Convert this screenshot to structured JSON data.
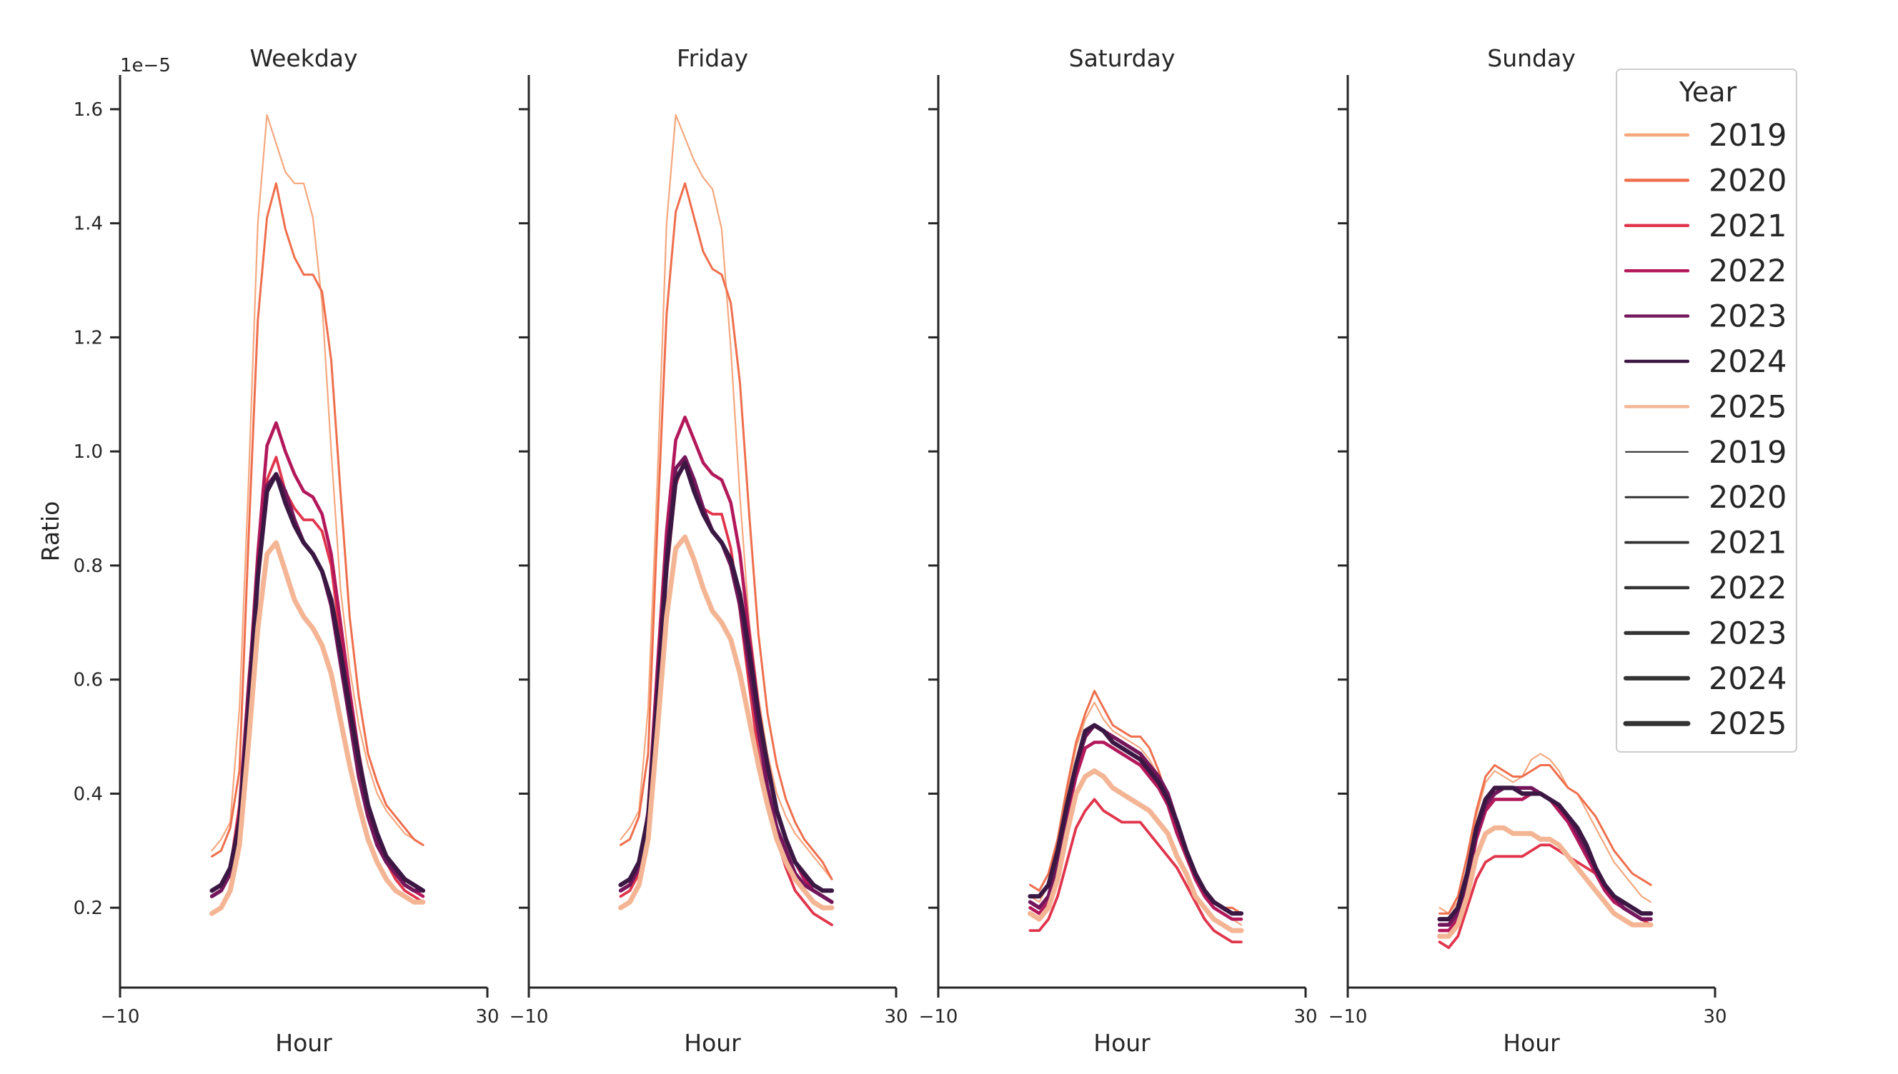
{
  "chart_data": {
    "type": "line",
    "ylabel": "Ratio",
    "xlabel": "Hour",
    "y_offset_label": "1e−5",
    "y_scale": 1e-05,
    "xlim": [
      -10,
      30
    ],
    "x_ticks": [
      -10,
      30
    ],
    "x_tick_labels": [
      "−10",
      "30"
    ],
    "ylim": [
      0.06,
      1.66
    ],
    "y_ticks": [
      0.2,
      0.4,
      0.6,
      0.8,
      1.0,
      1.2,
      1.4,
      1.6
    ],
    "y_tick_labels": [
      "0.2",
      "0.4",
      "0.6",
      "0.8",
      "1.0",
      "1.2",
      "1.4",
      "1.6"
    ],
    "x_hours": [
      0,
      1,
      2,
      3,
      4,
      5,
      6,
      7,
      8,
      9,
      10,
      11,
      12,
      13,
      14,
      15,
      16,
      17,
      18,
      19,
      20,
      21,
      22,
      23
    ],
    "grid": false,
    "legend": {
      "title": "Year",
      "placement": "right",
      "hue_entries": [
        {
          "label": "2019",
          "color": "#F5A77E"
        },
        {
          "label": "2020",
          "color": "#EF6E4C"
        },
        {
          "label": "2021",
          "color": "#E0354C"
        },
        {
          "label": "2022",
          "color": "#B3185B"
        },
        {
          "label": "2023",
          "color": "#74165B"
        },
        {
          "label": "2024",
          "color": "#3B1743"
        },
        {
          "label": "2025",
          "color": "#F4B595"
        }
      ],
      "size_entries": [
        {
          "label": "2019",
          "color": "#333333"
        },
        {
          "label": "2020",
          "color": "#333333"
        },
        {
          "label": "2021",
          "color": "#333333"
        },
        {
          "label": "2022",
          "color": "#333333"
        },
        {
          "label": "2023",
          "color": "#333333"
        },
        {
          "label": "2024",
          "color": "#333333"
        },
        {
          "label": "2025",
          "color": "#333333"
        }
      ]
    },
    "panels": [
      {
        "title": "Weekday",
        "series": [
          {
            "name": "2019",
            "color": "#F5A77E",
            "values": [
              0.3,
              0.32,
              0.35,
              0.55,
              0.95,
              1.4,
              1.59,
              1.54,
              1.49,
              1.47,
              1.47,
              1.41,
              1.26,
              1.0,
              0.76,
              0.62,
              0.52,
              0.45,
              0.4,
              0.37,
              0.35,
              0.33,
              0.32,
              0.31
            ]
          },
          {
            "name": "2020",
            "color": "#EF6E4C",
            "values": [
              0.29,
              0.3,
              0.34,
              0.44,
              0.85,
              1.23,
              1.41,
              1.47,
              1.39,
              1.34,
              1.31,
              1.31,
              1.28,
              1.16,
              0.93,
              0.71,
              0.57,
              0.47,
              0.42,
              0.38,
              0.36,
              0.34,
              0.32,
              0.31
            ]
          },
          {
            "name": "2021",
            "color": "#E0354C",
            "values": [
              0.22,
              0.23,
              0.27,
              0.38,
              0.6,
              0.78,
              0.95,
              0.99,
              0.93,
              0.9,
              0.88,
              0.88,
              0.86,
              0.8,
              0.67,
              0.54,
              0.44,
              0.37,
              0.32,
              0.28,
              0.25,
              0.23,
              0.22,
              0.21
            ]
          },
          {
            "name": "2022",
            "color": "#B3185B",
            "values": [
              0.22,
              0.23,
              0.26,
              0.36,
              0.58,
              0.82,
              1.01,
              1.05,
              1.0,
              0.96,
              0.93,
              0.92,
              0.89,
              0.82,
              0.7,
              0.58,
              0.47,
              0.38,
              0.33,
              0.29,
              0.26,
              0.24,
              0.23,
              0.22
            ]
          },
          {
            "name": "2023",
            "color": "#74165B",
            "values": [
              0.22,
              0.23,
              0.26,
              0.36,
              0.58,
              0.78,
              0.94,
              0.96,
              0.93,
              0.88,
              0.84,
              0.82,
              0.79,
              0.73,
              0.63,
              0.53,
              0.43,
              0.36,
              0.31,
              0.28,
              0.26,
              0.24,
              0.23,
              0.23
            ]
          },
          {
            "name": "2024",
            "color": "#3B1743",
            "values": [
              0.23,
              0.24,
              0.27,
              0.35,
              0.54,
              0.78,
              0.93,
              0.96,
              0.91,
              0.87,
              0.84,
              0.82,
              0.79,
              0.74,
              0.65,
              0.55,
              0.46,
              0.38,
              0.33,
              0.29,
              0.27,
              0.25,
              0.24,
              0.23
            ]
          },
          {
            "name": "2025",
            "color": "#F4B595",
            "values": [
              0.19,
              0.2,
              0.23,
              0.31,
              0.49,
              0.69,
              0.82,
              0.84,
              0.79,
              0.74,
              0.71,
              0.69,
              0.66,
              0.61,
              0.53,
              0.45,
              0.38,
              0.32,
              0.28,
              0.25,
              0.23,
              0.22,
              0.21,
              0.21
            ]
          }
        ]
      },
      {
        "title": "Friday",
        "series": [
          {
            "name": "2019",
            "color": "#F5A77E",
            "values": [
              0.32,
              0.34,
              0.37,
              0.55,
              0.95,
              1.4,
              1.59,
              1.55,
              1.51,
              1.48,
              1.46,
              1.39,
              1.18,
              0.92,
              0.7,
              0.57,
              0.47,
              0.4,
              0.36,
              0.33,
              0.31,
              0.29,
              0.27,
              0.25
            ]
          },
          {
            "name": "2020",
            "color": "#EF6E4C",
            "values": [
              0.31,
              0.32,
              0.36,
              0.47,
              0.87,
              1.24,
              1.42,
              1.47,
              1.41,
              1.35,
              1.32,
              1.31,
              1.26,
              1.12,
              0.89,
              0.68,
              0.54,
              0.45,
              0.39,
              0.35,
              0.32,
              0.3,
              0.28,
              0.25
            ]
          },
          {
            "name": "2021",
            "color": "#E0354C",
            "values": [
              0.22,
              0.23,
              0.26,
              0.37,
              0.6,
              0.78,
              0.94,
              0.99,
              0.94,
              0.9,
              0.89,
              0.89,
              0.83,
              0.72,
              0.59,
              0.47,
              0.38,
              0.32,
              0.27,
              0.23,
              0.21,
              0.19,
              0.18,
              0.17
            ]
          },
          {
            "name": "2022",
            "color": "#B3185B",
            "values": [
              0.23,
              0.24,
              0.27,
              0.37,
              0.62,
              0.86,
              1.02,
              1.06,
              1.02,
              0.98,
              0.96,
              0.95,
              0.91,
              0.82,
              0.68,
              0.55,
              0.45,
              0.37,
              0.32,
              0.28,
              0.25,
              0.23,
              0.22,
              0.21
            ]
          },
          {
            "name": "2023",
            "color": "#74165B",
            "values": [
              0.23,
              0.24,
              0.27,
              0.36,
              0.59,
              0.82,
              0.97,
              0.99,
              0.95,
              0.9,
              0.86,
              0.84,
              0.8,
              0.73,
              0.62,
              0.51,
              0.41,
              0.34,
              0.3,
              0.26,
              0.24,
              0.23,
              0.22,
              0.21
            ]
          },
          {
            "name": "2024",
            "color": "#3B1743",
            "values": [
              0.24,
              0.25,
              0.28,
              0.36,
              0.56,
              0.8,
              0.95,
              0.98,
              0.93,
              0.89,
              0.86,
              0.84,
              0.81,
              0.75,
              0.65,
              0.54,
              0.45,
              0.37,
              0.32,
              0.28,
              0.26,
              0.24,
              0.23,
              0.23
            ]
          },
          {
            "name": "2025",
            "color": "#F4B595",
            "values": [
              0.2,
              0.21,
              0.24,
              0.32,
              0.51,
              0.71,
              0.83,
              0.85,
              0.81,
              0.76,
              0.72,
              0.7,
              0.67,
              0.61,
              0.53,
              0.45,
              0.38,
              0.32,
              0.28,
              0.25,
              0.23,
              0.21,
              0.2,
              0.2
            ]
          }
        ]
      },
      {
        "title": "Saturday",
        "series": [
          {
            "name": "2019",
            "color": "#F5A77E",
            "values": [
              0.22,
              0.21,
              0.24,
              0.3,
              0.4,
              0.48,
              0.53,
              0.56,
              0.53,
              0.51,
              0.5,
              0.49,
              0.48,
              0.46,
              0.43,
              0.39,
              0.34,
              0.29,
              0.25,
              0.22,
              0.2,
              0.19,
              0.18,
              0.17
            ]
          },
          {
            "name": "2020",
            "color": "#EF6E4C",
            "values": [
              0.24,
              0.23,
              0.26,
              0.32,
              0.41,
              0.49,
              0.54,
              0.58,
              0.55,
              0.52,
              0.51,
              0.5,
              0.5,
              0.48,
              0.44,
              0.39,
              0.34,
              0.29,
              0.26,
              0.23,
              0.21,
              0.2,
              0.2,
              0.19
            ]
          },
          {
            "name": "2021",
            "color": "#E0354C",
            "values": [
              0.16,
              0.16,
              0.18,
              0.22,
              0.28,
              0.34,
              0.37,
              0.39,
              0.37,
              0.36,
              0.35,
              0.35,
              0.35,
              0.33,
              0.31,
              0.29,
              0.27,
              0.24,
              0.21,
              0.18,
              0.16,
              0.15,
              0.14,
              0.14
            ]
          },
          {
            "name": "2022",
            "color": "#B3185B",
            "values": [
              0.2,
              0.19,
              0.21,
              0.27,
              0.36,
              0.43,
              0.48,
              0.49,
              0.49,
              0.48,
              0.47,
              0.46,
              0.45,
              0.43,
              0.41,
              0.38,
              0.33,
              0.29,
              0.25,
              0.22,
              0.2,
              0.19,
              0.18,
              0.18
            ]
          },
          {
            "name": "2023",
            "color": "#74165B",
            "values": [
              0.21,
              0.2,
              0.22,
              0.28,
              0.37,
              0.45,
              0.5,
              0.52,
              0.51,
              0.5,
              0.49,
              0.48,
              0.47,
              0.45,
              0.43,
              0.4,
              0.35,
              0.3,
              0.26,
              0.23,
              0.21,
              0.2,
              0.19,
              0.19
            ]
          },
          {
            "name": "2024",
            "color": "#3B1743",
            "values": [
              0.22,
              0.22,
              0.24,
              0.3,
              0.38,
              0.45,
              0.51,
              0.52,
              0.51,
              0.49,
              0.48,
              0.47,
              0.46,
              0.44,
              0.42,
              0.39,
              0.35,
              0.3,
              0.26,
              0.23,
              0.21,
              0.2,
              0.19,
              0.19
            ]
          },
          {
            "name": "2025",
            "color": "#F4B595",
            "values": [
              0.19,
              0.18,
              0.2,
              0.25,
              0.33,
              0.4,
              0.43,
              0.44,
              0.43,
              0.41,
              0.4,
              0.39,
              0.38,
              0.37,
              0.35,
              0.33,
              0.29,
              0.26,
              0.22,
              0.2,
              0.18,
              0.17,
              0.16,
              0.16
            ]
          }
        ]
      },
      {
        "title": "Sunday",
        "series": [
          {
            "name": "2019",
            "color": "#F5A77E",
            "values": [
              0.2,
              0.19,
              0.21,
              0.27,
              0.36,
              0.42,
              0.44,
              0.43,
              0.42,
              0.43,
              0.46,
              0.47,
              0.46,
              0.44,
              0.41,
              0.4,
              0.37,
              0.34,
              0.31,
              0.28,
              0.26,
              0.24,
              0.22,
              0.21
            ]
          },
          {
            "name": "2020",
            "color": "#EF6E4C",
            "values": [
              0.19,
              0.19,
              0.22,
              0.29,
              0.37,
              0.43,
              0.45,
              0.44,
              0.43,
              0.43,
              0.44,
              0.45,
              0.45,
              0.43,
              0.41,
              0.4,
              0.38,
              0.36,
              0.33,
              0.3,
              0.28,
              0.26,
              0.25,
              0.24
            ]
          },
          {
            "name": "2021",
            "color": "#E0354C",
            "values": [
              0.14,
              0.13,
              0.15,
              0.2,
              0.25,
              0.28,
              0.29,
              0.29,
              0.29,
              0.29,
              0.3,
              0.31,
              0.31,
              0.3,
              0.29,
              0.28,
              0.27,
              0.26,
              0.24,
              0.22,
              0.2,
              0.19,
              0.18,
              0.17
            ]
          },
          {
            "name": "2022",
            "color": "#B3185B",
            "values": [
              0.16,
              0.16,
              0.18,
              0.24,
              0.32,
              0.37,
              0.39,
              0.39,
              0.39,
              0.39,
              0.4,
              0.4,
              0.39,
              0.37,
              0.35,
              0.32,
              0.29,
              0.26,
              0.23,
              0.21,
              0.2,
              0.19,
              0.18,
              0.18
            ]
          },
          {
            "name": "2023",
            "color": "#74165B",
            "values": [
              0.17,
              0.17,
              0.19,
              0.25,
              0.33,
              0.38,
              0.4,
              0.41,
              0.41,
              0.41,
              0.41,
              0.4,
              0.39,
              0.38,
              0.36,
              0.33,
              0.3,
              0.27,
              0.24,
              0.22,
              0.2,
              0.19,
              0.18,
              0.18
            ]
          },
          {
            "name": "2024",
            "color": "#3B1743",
            "values": [
              0.18,
              0.18,
              0.2,
              0.26,
              0.34,
              0.39,
              0.41,
              0.41,
              0.41,
              0.4,
              0.4,
              0.4,
              0.39,
              0.38,
              0.36,
              0.34,
              0.31,
              0.27,
              0.24,
              0.22,
              0.21,
              0.2,
              0.19,
              0.19
            ]
          },
          {
            "name": "2025",
            "color": "#F4B595",
            "values": [
              0.15,
              0.15,
              0.17,
              0.22,
              0.29,
              0.33,
              0.34,
              0.34,
              0.33,
              0.33,
              0.33,
              0.32,
              0.32,
              0.31,
              0.29,
              0.27,
              0.25,
              0.23,
              0.21,
              0.19,
              0.18,
              0.17,
              0.17,
              0.17
            ]
          }
        ]
      }
    ]
  }
}
